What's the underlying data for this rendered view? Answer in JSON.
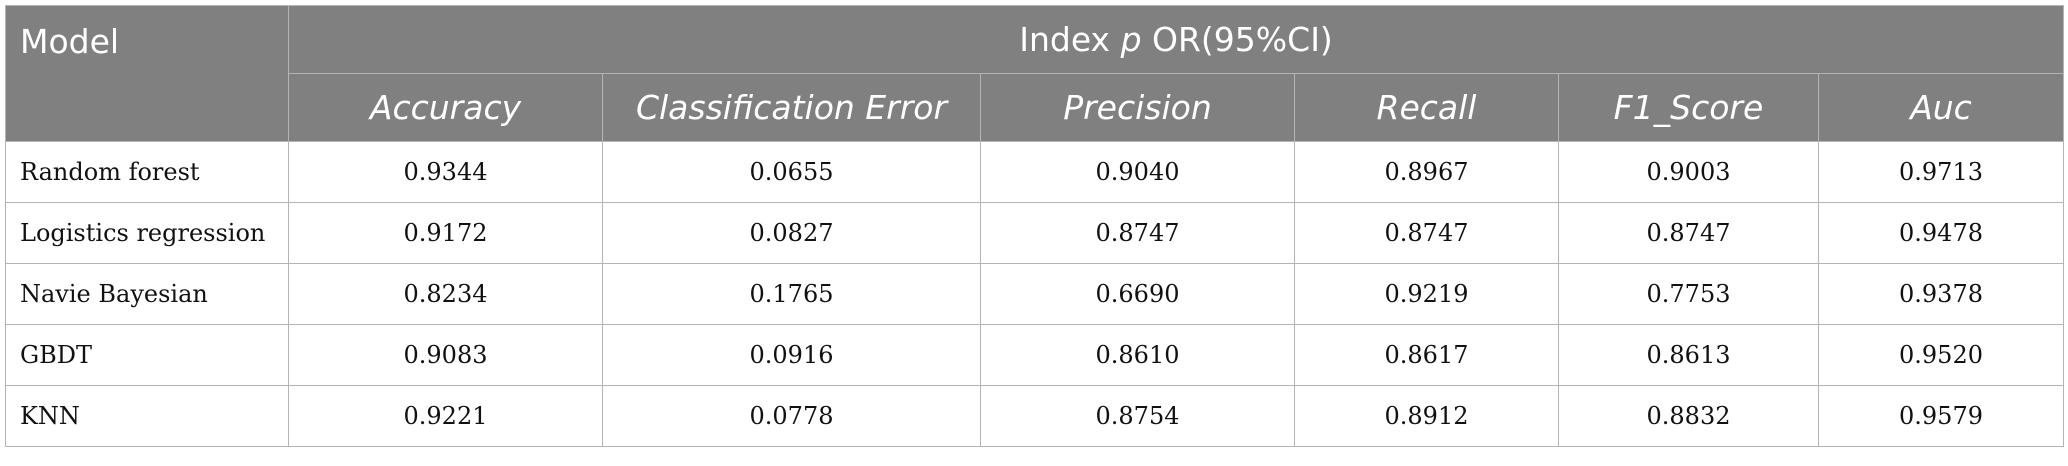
{
  "table": {
    "model_header": "Model",
    "group_header": {
      "prefix": "Index ",
      "italic": "p",
      "suffix": " OR(95%CI)"
    },
    "columns": [
      "Accuracy",
      "Classification Error",
      "Precision",
      "Recall",
      "F1_Score",
      "Auc"
    ],
    "rows": [
      {
        "model": "Random forest",
        "values": [
          "0.9344",
          "0.0655",
          "0.9040",
          "0.8967",
          "0.9003",
          "0.9713"
        ]
      },
      {
        "model": "Logistics regression",
        "values": [
          "0.9172",
          "0.0827",
          "0.8747",
          "0.8747",
          "0.8747",
          "0.9478"
        ]
      },
      {
        "model": "Navie Bayesian",
        "values": [
          "0.8234",
          "0.1765",
          "0.6690",
          "0.9219",
          "0.7753",
          "0.9378"
        ]
      },
      {
        "model": "GBDT",
        "values": [
          "0.9083",
          "0.0916",
          "0.8610",
          "0.8617",
          "0.8613",
          "0.9520"
        ]
      },
      {
        "model": "KNN",
        "values": [
          "0.9221",
          "0.0778",
          "0.8754",
          "0.8912",
          "0.8832",
          "0.9579"
        ]
      }
    ]
  },
  "colors": {
    "header_bg": "#808080",
    "header_text": "#ffffff",
    "grid_line": "#b4b4b4"
  }
}
